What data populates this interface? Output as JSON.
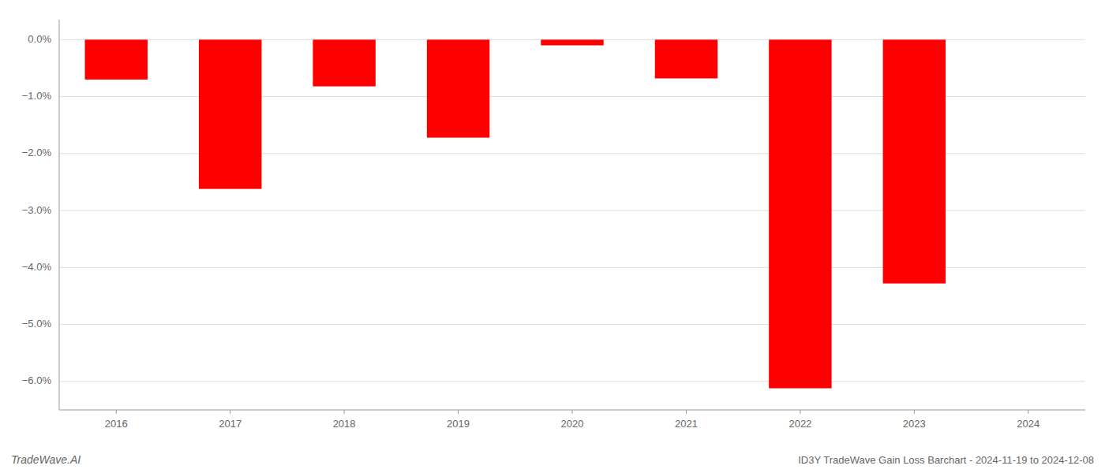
{
  "chart_data": {
    "type": "bar",
    "categories": [
      "2016",
      "2017",
      "2018",
      "2019",
      "2020",
      "2021",
      "2022",
      "2023",
      "2024"
    ],
    "values": [
      -0.7,
      -2.62,
      -0.82,
      -1.72,
      -0.1,
      -0.68,
      -6.12,
      -4.28,
      0.0
    ],
    "color": "#ff0000",
    "ylim": [
      -6.5,
      0.35
    ],
    "yticks": [
      {
        "value": 0.0,
        "label": "0.0%"
      },
      {
        "value": -1.0,
        "label": "−1.0%"
      },
      {
        "value": -2.0,
        "label": "−2.0%"
      },
      {
        "value": -3.0,
        "label": "−3.0%"
      },
      {
        "value": -4.0,
        "label": "−4.0%"
      },
      {
        "value": -5.0,
        "label": "−5.0%"
      },
      {
        "value": -6.0,
        "label": "−6.0%"
      }
    ],
    "grid": true,
    "annotations": [
      "TradeWave.AI",
      "ID3Y TradeWave Gain Loss Barchart - 2024-11-19 to 2024-12-08"
    ]
  }
}
